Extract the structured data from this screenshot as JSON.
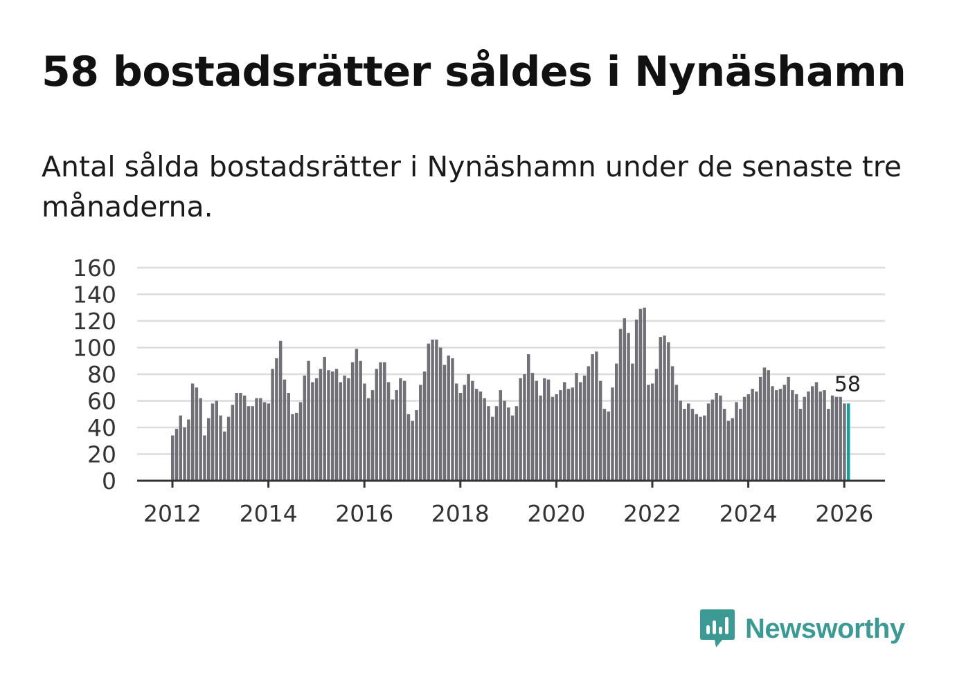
{
  "title": "58 bostadsrätter såldes i Nynäshamn",
  "subtitle": "Antal sålda bostadsrätter i Nynäshamn under de senaste tre månaderna.",
  "brand": {
    "name": "Newsworthy",
    "icon": "newsworthy-logo-icon",
    "color": "#3c9a95"
  },
  "colors": {
    "bar": "#717076",
    "highlight": "#16a099",
    "grid": "#dcdcdc",
    "axis": "#333333",
    "text": "#333333"
  },
  "chart_data": {
    "type": "bar",
    "title": "",
    "xlabel": "",
    "ylabel": "",
    "ylim": [
      0,
      160
    ],
    "yticks": [
      "0",
      "20",
      "40",
      "60",
      "80",
      "100",
      "120",
      "140",
      "160"
    ],
    "xticks": [
      "2012",
      "2014",
      "2016",
      "2018",
      "2020",
      "2022",
      "2024",
      "2026"
    ],
    "start": "2012-01",
    "grid": true,
    "highlight_label": "58",
    "values": [
      34,
      39,
      49,
      40,
      46,
      73,
      70,
      62,
      34,
      47,
      58,
      60,
      49,
      37,
      48,
      57,
      66,
      66,
      64,
      56,
      56,
      62,
      62,
      59,
      58,
      84,
      92,
      105,
      76,
      66,
      50,
      51,
      59,
      79,
      90,
      74,
      77,
      84,
      93,
      83,
      82,
      84,
      74,
      79,
      77,
      89,
      99,
      90,
      73,
      62,
      68,
      84,
      89,
      89,
      74,
      61,
      68,
      77,
      75,
      50,
      45,
      53,
      72,
      82,
      103,
      106,
      106,
      100,
      87,
      94,
      92,
      73,
      66,
      72,
      80,
      75,
      69,
      67,
      62,
      56,
      48,
      56,
      68,
      60,
      55,
      49,
      56,
      77,
      80,
      95,
      81,
      75,
      64,
      77,
      76,
      63,
      65,
      68,
      74,
      69,
      70,
      81,
      74,
      79,
      86,
      95,
      97,
      75,
      54,
      52,
      70,
      88,
      114,
      122,
      111,
      88,
      121,
      129,
      130,
      72,
      73,
      84,
      108,
      109,
      104,
      86,
      72,
      60,
      54,
      58,
      54,
      50,
      48,
      49,
      58,
      61,
      66,
      64,
      54,
      45,
      47,
      59,
      54,
      63,
      65,
      69,
      67,
      78,
      85,
      83,
      71,
      68,
      69,
      72,
      78,
      68,
      65,
      54,
      63,
      67,
      71,
      74,
      67,
      68,
      54,
      64,
      63,
      63,
      58,
      58
    ]
  }
}
